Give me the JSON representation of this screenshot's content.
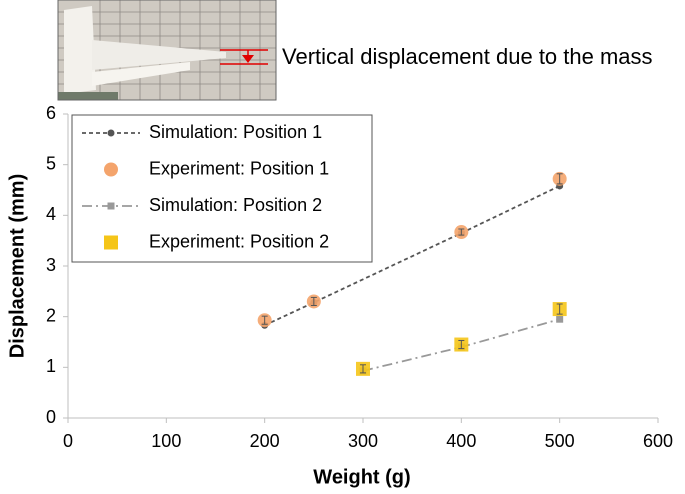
{
  "chart_data": {
    "type": "line",
    "annotation": "Vertical displacement due to the mass",
    "xlabel": "Weight (g)",
    "ylabel": "Displacement (mm)",
    "xlim": [
      0,
      600
    ],
    "xticks": [
      0,
      100,
      200,
      300,
      400,
      500,
      600
    ],
    "ylim": [
      0,
      6
    ],
    "yticks": [
      0,
      1,
      2,
      3,
      4,
      5,
      6
    ],
    "grid": false,
    "legend": "upper left",
    "series": [
      {
        "name": "Simulation: Position 1",
        "color": "#555555",
        "marker": "circle",
        "linestyle": "dashed",
        "x": [
          200,
          250,
          400,
          500
        ],
        "values": [
          1.83,
          2.28,
          3.65,
          4.58
        ]
      },
      {
        "name": "Experiment: Position 1",
        "color": "#f4a46c",
        "marker": "circle",
        "linestyle": "none",
        "x": [
          200,
          250,
          400,
          500
        ],
        "values": [
          1.93,
          2.3,
          3.67,
          4.72
        ],
        "errors": [
          0.08,
          0.08,
          0.06,
          0.1
        ]
      },
      {
        "name": "Simulation: Position 2",
        "color": "#999999",
        "marker": "square",
        "linestyle": "dashdot",
        "x": [
          300,
          400,
          500
        ],
        "values": [
          0.93,
          1.4,
          1.95
        ]
      },
      {
        "name": "Experiment: Position 2",
        "color": "#f5c518",
        "marker": "square",
        "linestyle": "none",
        "x": [
          300,
          400,
          500
        ],
        "values": [
          0.97,
          1.45,
          2.15
        ],
        "errors": [
          0.08,
          0.08,
          0.1
        ]
      }
    ]
  }
}
